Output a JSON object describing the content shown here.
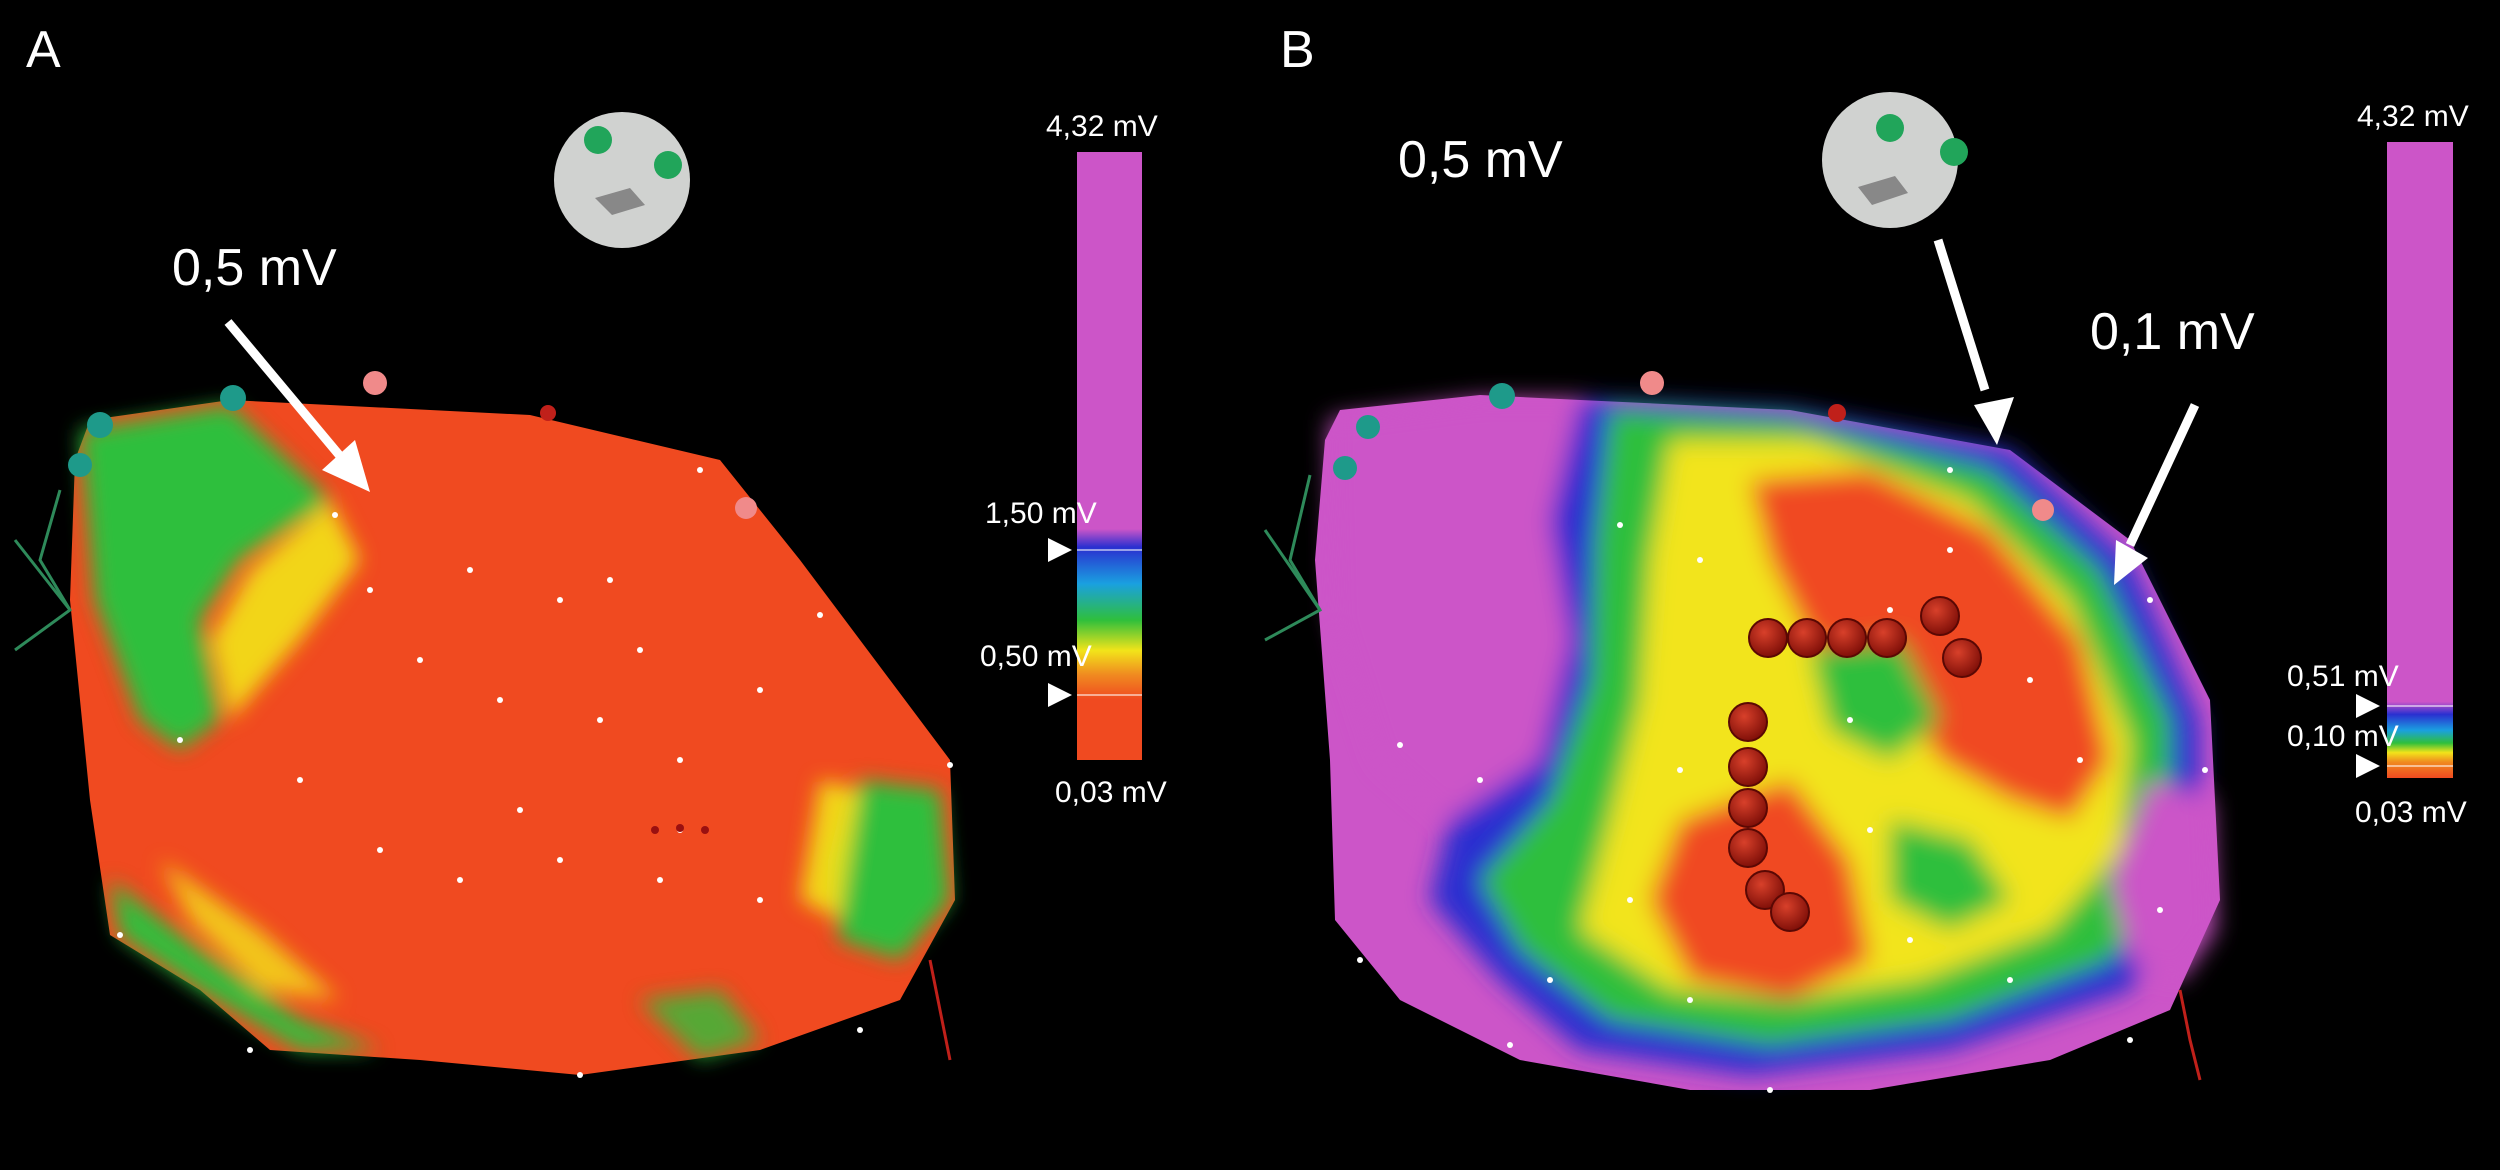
{
  "panel_a": {
    "letter": "A",
    "callouts": [
      "0,5 mV"
    ],
    "scale": {
      "max": "4,32 mV",
      "marker_high": "1,50 mV",
      "marker_low": "0,50 mV",
      "min": "0,03 mV"
    }
  },
  "panel_b": {
    "letter": "B",
    "callouts": [
      "0,5 mV",
      "0,1 mV"
    ],
    "scale": {
      "max": "4,32 mV",
      "marker_high": "0,51 mV",
      "marker_low": "0,10 mV",
      "min": "0,03 mV"
    }
  },
  "colors": {
    "background": "#000000",
    "scar_red": "#f04a20",
    "healthy_purple": "#cc55c8",
    "transition_green": "#2fbf3c",
    "transition_yellow": "#f2e41a",
    "transition_blue": "#2a2fd0",
    "ablation_lesion": "#a01a10"
  },
  "icons": [
    "orientation-head-icon",
    "arrow-icon",
    "scale-marker-triangle-icon"
  ]
}
